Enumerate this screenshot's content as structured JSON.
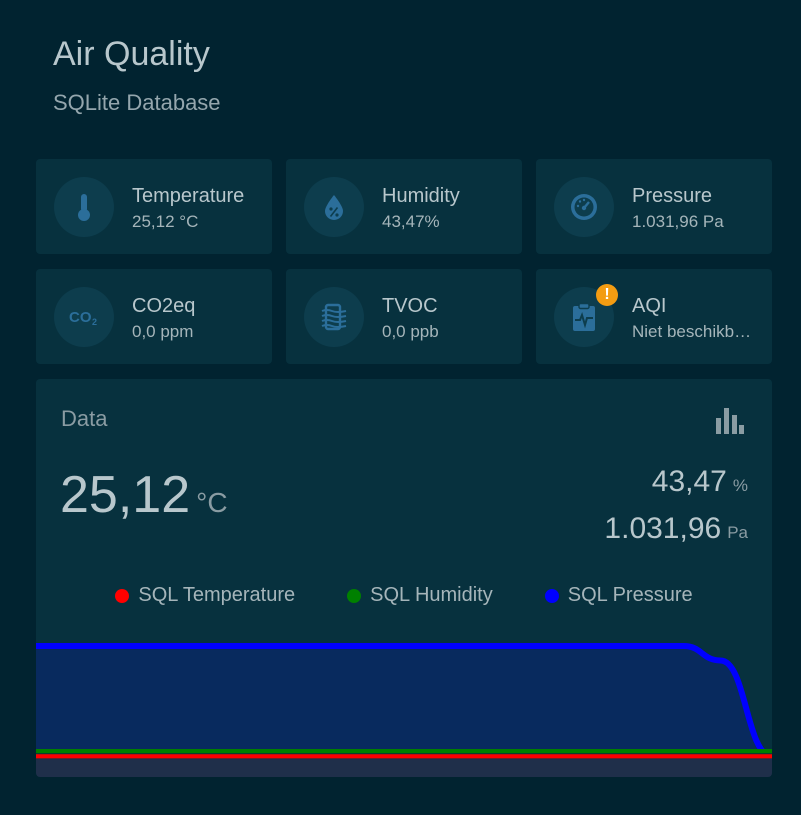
{
  "header": {
    "title": "Air Quality",
    "subtitle": "SQLite Database"
  },
  "sensors": [
    {
      "label": "Temperature",
      "value": "25,12 °C",
      "icon": "thermometer-icon"
    },
    {
      "label": "Humidity",
      "value": "43,47%",
      "icon": "water-percent-icon"
    },
    {
      "label": "Pressure",
      "value": "1.031,96 Pa",
      "icon": "gauge-icon"
    },
    {
      "label": "CO2eq",
      "value": "0,0 ppm",
      "icon": "co2-icon"
    },
    {
      "label": "TVOC",
      "value": "0,0 ppb",
      "icon": "air-filter-icon"
    },
    {
      "label": "AQI",
      "value": "Niet beschikbaar",
      "icon": "clipboard-pulse-icon",
      "badge": "!"
    }
  ],
  "graph": {
    "name": "Data",
    "main_value": "25,12",
    "main_unit": "°C",
    "secondary": [
      {
        "value": "43,47",
        "unit": "%"
      },
      {
        "value": "1.031,96",
        "unit": "Pa"
      }
    ]
  },
  "chart_data": {
    "type": "area",
    "title": "",
    "xlabel": "",
    "ylabel": "",
    "grid": false,
    "legend_position": "top-center",
    "x": [
      0,
      0.5,
      0.88,
      0.93,
      1.0
    ],
    "series": [
      {
        "name": "SQL Temperature",
        "color": "#ff0000",
        "values": [
          25.12,
          25.12,
          25.12,
          25.12,
          25.12
        ]
      },
      {
        "name": "SQL Humidity",
        "color": "#008000",
        "values": [
          43.47,
          43.47,
          43.47,
          43.1,
          25.12
        ]
      },
      {
        "name": "SQL Pressure",
        "color": "#0000ff",
        "values": [
          1031.96,
          1031.96,
          1031.96,
          900,
          25.12
        ]
      }
    ]
  },
  "colors": {
    "background": "#012330",
    "card": "#07313e",
    "icon": "#2b6e9a",
    "badge": "#f39c12",
    "pressure_fill": "#082a5e"
  }
}
